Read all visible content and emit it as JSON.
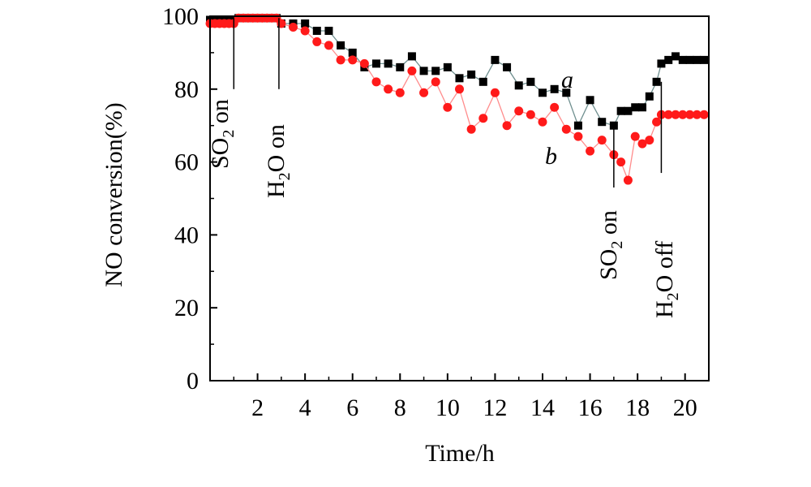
{
  "chart_data": {
    "type": "line",
    "title": "",
    "xlabel": "Time/h",
    "ylabel": "NO conversion(%)",
    "xlim": [
      0,
      21
    ],
    "ylim": [
      0,
      100
    ],
    "xticks": [
      2,
      4,
      6,
      8,
      10,
      12,
      14,
      16,
      18,
      20
    ],
    "yticks": [
      0,
      20,
      40,
      60,
      80,
      100
    ],
    "grid": false,
    "series": [
      {
        "name": "a",
        "marker": "square",
        "color": "#000000",
        "line_color": "#6f8f8f",
        "x": [
          0.0,
          0.2,
          0.4,
          0.6,
          0.8,
          1.0,
          1.2,
          1.4,
          1.6,
          1.8,
          2.0,
          2.2,
          2.4,
          2.6,
          2.8,
          3.0,
          3.5,
          4.0,
          4.5,
          5.0,
          5.5,
          6.0,
          6.5,
          7.0,
          7.5,
          8.0,
          8.5,
          9.0,
          9.5,
          10.0,
          10.5,
          11.0,
          11.5,
          12.0,
          12.5,
          13.0,
          13.5,
          14.0,
          14.5,
          15.0,
          15.5,
          16.0,
          16.5,
          17.0,
          17.3,
          17.6,
          17.9,
          18.2,
          18.5,
          18.8,
          19.0,
          19.3,
          19.6,
          19.9,
          20.2,
          20.5,
          20.8
        ],
        "y": [
          99,
          99,
          99,
          99,
          99,
          99,
          99.5,
          99.5,
          99.5,
          99.5,
          99.5,
          99.5,
          99.5,
          99.5,
          99.5,
          98,
          98,
          98,
          96,
          96,
          92,
          90,
          86,
          87,
          87,
          86,
          89,
          85,
          85,
          86,
          83,
          84,
          82,
          88,
          86,
          81,
          82,
          79,
          80,
          79,
          70,
          77,
          71,
          70,
          74,
          74,
          75,
          75,
          78,
          82,
          87,
          88,
          89,
          88,
          88,
          88,
          88
        ]
      },
      {
        "name": "b",
        "marker": "circle",
        "color": "#ff1a1a",
        "line_color": "#ff8c8c",
        "x": [
          0.0,
          0.2,
          0.4,
          0.6,
          0.8,
          1.0,
          1.2,
          1.4,
          1.6,
          1.8,
          2.0,
          2.2,
          2.4,
          2.6,
          2.8,
          3.0,
          3.5,
          4.0,
          4.5,
          5.0,
          5.5,
          6.0,
          6.5,
          7.0,
          7.5,
          8.0,
          8.5,
          9.0,
          9.5,
          10.0,
          10.5,
          11.0,
          11.5,
          12.0,
          12.5,
          13.0,
          13.5,
          14.0,
          14.5,
          15.0,
          15.5,
          16.0,
          16.5,
          17.0,
          17.3,
          17.6,
          17.9,
          18.2,
          18.5,
          18.8,
          19.0,
          19.3,
          19.6,
          19.9,
          20.2,
          20.5,
          20.8
        ],
        "y": [
          98,
          98,
          98,
          98,
          98,
          98,
          99.5,
          99.5,
          99.5,
          99.5,
          99.5,
          99.5,
          99.5,
          99.5,
          99.5,
          98,
          97,
          96,
          93,
          92,
          88,
          88,
          87,
          82,
          80,
          79,
          85,
          79,
          82,
          75,
          80,
          69,
          72,
          79,
          70,
          74,
          73,
          71,
          75,
          69,
          67,
          63,
          66,
          62,
          60,
          55,
          67,
          65,
          66,
          71,
          73,
          73,
          73,
          73,
          73,
          73,
          73
        ]
      }
    ],
    "annotations": [
      {
        "text": "SO",
        "sub": "2",
        "after": " on",
        "x": 1.0,
        "event": "SO2 on"
      },
      {
        "text": "H",
        "sub": "2",
        "after": "O on",
        "x": 2.9,
        "event": "H2O on"
      },
      {
        "text": "SO",
        "sub": "2",
        "after": " on",
        "x": 17.0,
        "event": "SO2 on"
      },
      {
        "text": "H",
        "sub": "2",
        "after": "O off",
        "x": 19.0,
        "event": "H2O off"
      }
    ],
    "series_labels": [
      {
        "text": "a",
        "series": "a"
      },
      {
        "text": "b",
        "series": "b"
      }
    ]
  }
}
